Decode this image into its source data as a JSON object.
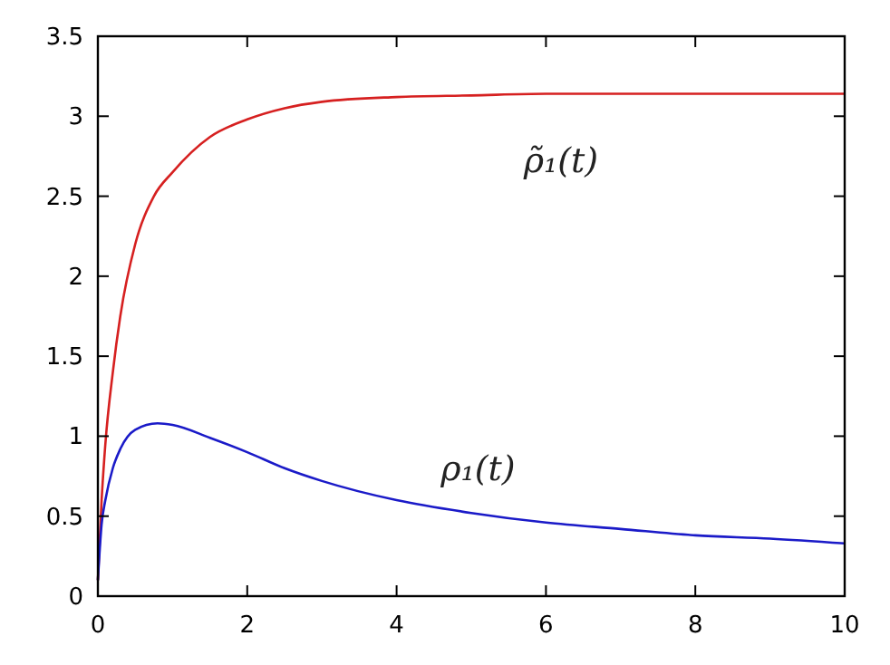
{
  "chart_data": {
    "type": "line",
    "xlim": [
      0,
      10
    ],
    "ylim": [
      0,
      3.5
    ],
    "xticks": [
      0,
      2,
      4,
      6,
      8,
      10
    ],
    "yticks": [
      0,
      0.5,
      1,
      1.5,
      2,
      2.5,
      3,
      3.5
    ],
    "grid": false,
    "marker": "none",
    "line_style": "solid",
    "series": [
      {
        "name": "ρ̃₁(t)",
        "color": "#d62020",
        "x": [
          0,
          0.05,
          0.1,
          0.2,
          0.3,
          0.5,
          0.75,
          1,
          1.5,
          2,
          2.5,
          3,
          4,
          5,
          6,
          8,
          10
        ],
        "values": [
          0.1,
          0.6,
          0.95,
          1.4,
          1.75,
          2.2,
          2.5,
          2.65,
          2.87,
          2.98,
          3.05,
          3.09,
          3.12,
          3.13,
          3.14,
          3.14,
          3.14
        ]
      },
      {
        "name": "ρ₁(t)",
        "color": "#1a1ac8",
        "x": [
          0,
          0.05,
          0.1,
          0.2,
          0.3,
          0.5,
          0.8,
          1,
          1.5,
          2,
          2.5,
          3,
          4,
          5,
          6,
          7,
          8,
          9,
          10
        ],
        "values": [
          0.1,
          0.45,
          0.6,
          0.8,
          0.92,
          1.04,
          1.08,
          1.07,
          0.99,
          0.9,
          0.8,
          0.72,
          0.6,
          0.52,
          0.46,
          0.42,
          0.38,
          0.36,
          0.33
        ]
      }
    ]
  }
}
